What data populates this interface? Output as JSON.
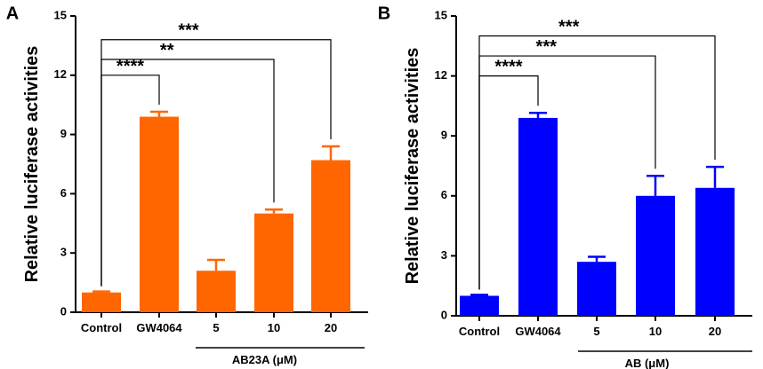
{
  "chart_data": [
    {
      "panel": "A",
      "type": "bar",
      "color": "#ff6600",
      "ylabel": "Relative luciferase activities",
      "ylim": [
        0,
        15
      ],
      "yticks": [
        "0",
        "3",
        "6",
        "9",
        "12",
        "15"
      ],
      "categories": [
        "Control",
        "GW4064",
        "5",
        "10",
        "20"
      ],
      "values": [
        1.0,
        9.9,
        2.1,
        5.0,
        7.7
      ],
      "errors": [
        0.05,
        0.25,
        0.55,
        0.2,
        0.7
      ],
      "group_label": "AB23A (μM)",
      "significance": [
        {
          "from": 0,
          "to": 1,
          "label": "****",
          "level": 12.0
        },
        {
          "from": 0,
          "to": 3,
          "label": "**",
          "level": 12.8
        },
        {
          "from": 0,
          "to": 4,
          "label": "***",
          "level": 13.8
        }
      ]
    },
    {
      "panel": "B",
      "type": "bar",
      "color": "#0000ff",
      "ylabel": "Relative luciferase activities",
      "ylim": [
        0,
        15
      ],
      "yticks": [
        "0",
        "3",
        "6",
        "9",
        "12",
        "15"
      ],
      "categories": [
        "Control",
        "GW4064",
        "5",
        "10",
        "20"
      ],
      "values": [
        1.0,
        9.9,
        2.7,
        6.0,
        6.4
      ],
      "errors": [
        0.05,
        0.25,
        0.25,
        1.0,
        1.05
      ],
      "group_label": "AB (μM)",
      "significance": [
        {
          "from": 0,
          "to": 1,
          "label": "****",
          "level": 12.0
        },
        {
          "from": 0,
          "to": 3,
          "label": "***",
          "level": 13.0
        },
        {
          "from": 0,
          "to": 4,
          "label": "***",
          "level": 14.0
        }
      ]
    }
  ]
}
